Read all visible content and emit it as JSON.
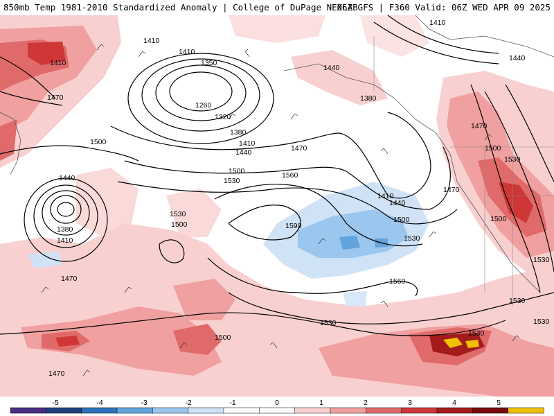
{
  "header": {
    "title_left": "850mb Temp 1981-2010 Standardized Anomaly | College of DuPage NEXLAB",
    "title_right": "06Z GFS | F360 Valid: 06Z WED APR 09 2025"
  },
  "contour_labels": [
    "1410",
    "1440",
    "1410",
    "1350",
    "1260",
    "1320",
    "1380",
    "1410",
    "1440",
    "1470",
    "1500",
    "1530",
    "1560",
    "1590",
    "1530",
    "1500",
    "1380",
    "1410",
    "1440",
    "1470",
    "1500",
    "1530",
    "1560",
    "1530",
    "1500",
    "1470",
    "1440",
    "1380",
    "1410",
    "1470",
    "1500",
    "1410",
    "1440",
    "1380",
    "1470",
    "1500",
    "1530",
    "1470",
    "1500",
    "1530",
    "1530",
    "1470",
    "1530",
    "1530",
    "1410",
    "1440"
  ],
  "colorbar": {
    "tick_labels": [
      "-5",
      "-4",
      "-3",
      "-2",
      "-1",
      "0",
      "1",
      "2",
      "3",
      "4",
      "5"
    ],
    "colors": [
      "#4a2c82",
      "#203f7c",
      "#2d72b8",
      "#62a3dc",
      "#9bc6ee",
      "#cfe2f6",
      "#ffffff",
      "#ffffff",
      "#f9d0d0",
      "#f0a0a0",
      "#e06a6a",
      "#cf3737",
      "#a31b1b",
      "#780b0b",
      "#f0c000"
    ]
  },
  "colors": {
    "neg_light": "#cfe2f6",
    "neg_mid": "#9bc6ee",
    "neg_strong": "#62a3dc",
    "pos_light": "#f9d0d0",
    "pos_mid": "#f0a0a0",
    "pos_strong": "#e06a6a",
    "pos_darker": "#cf3737",
    "pos_darkest": "#a31b1b",
    "extreme": "#f0c000"
  }
}
